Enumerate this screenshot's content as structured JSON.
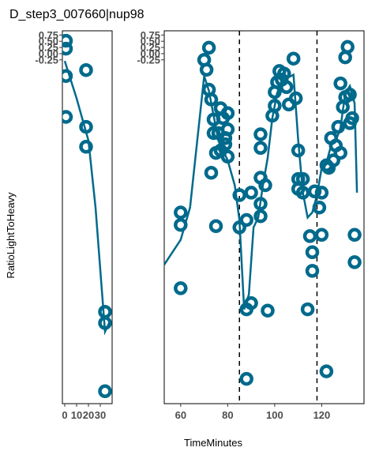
{
  "chart_data": {
    "type": "scatter",
    "title": "D_step3_007660|nup98",
    "xlabel": "TimeMinutes",
    "ylabel": "RatioLightToHeavy",
    "color": "#006a8c",
    "y_tick_labels": [
      "0.75",
      "0.50",
      "0.25",
      "0.00",
      "-0.25"
    ],
    "y_ticks": [
      0.75,
      0.5,
      0.25,
      0.0,
      -0.25
    ],
    "ylim": [
      -14.1,
      0.92
    ],
    "panels": [
      {
        "xlim": [
          -2,
          40
        ],
        "x_tick_labels": [
          "0",
          "10",
          "20",
          "30"
        ],
        "x_ticks": [
          0,
          10,
          20,
          30
        ],
        "vlines": [],
        "points": [
          {
            "x": 1,
            "y": 0.52
          },
          {
            "x": 1,
            "y": 0.2
          },
          {
            "x": 1,
            "y": -0.9
          },
          {
            "x": 1,
            "y": -2.55
          },
          {
            "x": 18,
            "y": -0.66
          },
          {
            "x": 18,
            "y": -2.95
          },
          {
            "x": 18,
            "y": -3.75
          },
          {
            "x": 34,
            "y": -10.4
          },
          {
            "x": 34,
            "y": -10.85
          },
          {
            "x": 34,
            "y": -13.6
          }
        ],
        "line": [
          {
            "x": 0,
            "y": -0.3
          },
          {
            "x": 10,
            "y": -1.8
          },
          {
            "x": 20,
            "y": -3.5
          },
          {
            "x": 26,
            "y": -6.2
          },
          {
            "x": 34,
            "y": -11.2
          },
          {
            "x": 38,
            "y": -10.8
          }
        ]
      },
      {
        "xlim": [
          53,
          138
        ],
        "x_tick_labels": [
          "60",
          "80",
          "100",
          "120"
        ],
        "x_ticks": [
          60,
          80,
          100,
          120
        ],
        "vlines": [
          85,
          118
        ],
        "points": [
          {
            "x": 60,
            "y": -6.4
          },
          {
            "x": 60,
            "y": -6.9
          },
          {
            "x": 60,
            "y": -9.45
          },
          {
            "x": 70,
            "y": -0.25
          },
          {
            "x": 71,
            "y": -0.65
          },
          {
            "x": 72,
            "y": 0.24
          },
          {
            "x": 72,
            "y": -1.45
          },
          {
            "x": 73,
            "y": -1.85
          },
          {
            "x": 73,
            "y": -4.8
          },
          {
            "x": 74,
            "y": -2.65
          },
          {
            "x": 74,
            "y": -3.2
          },
          {
            "x": 75,
            "y": -4.0
          },
          {
            "x": 75,
            "y": -6.95
          },
          {
            "x": 76,
            "y": -3.2
          },
          {
            "x": 77,
            "y": -3.9
          },
          {
            "x": 77,
            "y": -2.2
          },
          {
            "x": 78,
            "y": -2.6
          },
          {
            "x": 79,
            "y": -3.4
          },
          {
            "x": 79,
            "y": -3.65
          },
          {
            "x": 80,
            "y": -3.05
          },
          {
            "x": 80,
            "y": -2.4
          },
          {
            "x": 80,
            "y": -4.15
          },
          {
            "x": 85,
            "y": -5.7
          },
          {
            "x": 85,
            "y": -7.0
          },
          {
            "x": 88,
            "y": -6.7
          },
          {
            "x": 88,
            "y": -10.3
          },
          {
            "x": 88,
            "y": -13.1
          },
          {
            "x": 90,
            "y": -5.6
          },
          {
            "x": 90,
            "y": -10.05
          },
          {
            "x": 94,
            "y": -3.25
          },
          {
            "x": 94,
            "y": -3.8
          },
          {
            "x": 94,
            "y": -6.05
          },
          {
            "x": 94,
            "y": -6.55
          },
          {
            "x": 94,
            "y": -5.0
          },
          {
            "x": 96,
            "y": -5.3
          },
          {
            "x": 97,
            "y": -10.35
          },
          {
            "x": 99,
            "y": -2.5
          },
          {
            "x": 100,
            "y": -2.1
          },
          {
            "x": 100,
            "y": -1.55
          },
          {
            "x": 101,
            "y": -1.15
          },
          {
            "x": 102,
            "y": -0.7
          },
          {
            "x": 103,
            "y": -1.05
          },
          {
            "x": 104,
            "y": -0.8
          },
          {
            "x": 105,
            "y": -1.35
          },
          {
            "x": 106,
            "y": -2.05
          },
          {
            "x": 108,
            "y": -0.2
          },
          {
            "x": 109,
            "y": -1.8
          },
          {
            "x": 110,
            "y": -3.9
          },
          {
            "x": 110,
            "y": -5.05
          },
          {
            "x": 110,
            "y": -5.45
          },
          {
            "x": 112,
            "y": -5.05
          },
          {
            "x": 112,
            "y": -5.6
          },
          {
            "x": 114,
            "y": -10.3
          },
          {
            "x": 115,
            "y": -7.35
          },
          {
            "x": 116,
            "y": -8.0
          },
          {
            "x": 116,
            "y": -8.75
          },
          {
            "x": 117,
            "y": -5.55
          },
          {
            "x": 119,
            "y": -6.2
          },
          {
            "x": 120,
            "y": -5.6
          },
          {
            "x": 120,
            "y": -7.3
          },
          {
            "x": 122,
            "y": -12.8
          },
          {
            "x": 122,
            "y": -4.5
          },
          {
            "x": 123,
            "y": -4.6
          },
          {
            "x": 124,
            "y": -3.4
          },
          {
            "x": 125,
            "y": -4.3
          },
          {
            "x": 126,
            "y": -3.7
          },
          {
            "x": 127,
            "y": -2.95
          },
          {
            "x": 128,
            "y": -4.0
          },
          {
            "x": 128,
            "y": -1.2
          },
          {
            "x": 129,
            "y": -2.15
          },
          {
            "x": 130,
            "y": -1.75
          },
          {
            "x": 130,
            "y": -0.15
          },
          {
            "x": 131,
            "y": 0.27
          },
          {
            "x": 132,
            "y": -2.8
          },
          {
            "x": 132,
            "y": -1.65
          },
          {
            "x": 133,
            "y": -2.6
          },
          {
            "x": 134,
            "y": -7.3
          },
          {
            "x": 134,
            "y": -8.4
          }
        ],
        "line": [
          {
            "x": 53,
            "y": -8.5
          },
          {
            "x": 60,
            "y": -7.5
          },
          {
            "x": 64,
            "y": -6.2
          },
          {
            "x": 70,
            "y": -0.9
          },
          {
            "x": 72,
            "y": -1.5
          },
          {
            "x": 76,
            "y": -3.5
          },
          {
            "x": 80,
            "y": -4.3
          },
          {
            "x": 83,
            "y": -5.3
          },
          {
            "x": 85,
            "y": -6.7
          },
          {
            "x": 87,
            "y": -10.3
          },
          {
            "x": 89,
            "y": -9.7
          },
          {
            "x": 91,
            "y": -7.0
          },
          {
            "x": 93,
            "y": -6.6
          },
          {
            "x": 95,
            "y": -5.3
          },
          {
            "x": 97,
            "y": -4.2
          },
          {
            "x": 99,
            "y": -2.6
          },
          {
            "x": 101,
            "y": -1.6
          },
          {
            "x": 103,
            "y": -1.1
          },
          {
            "x": 105,
            "y": -1.0
          },
          {
            "x": 108,
            "y": -0.85
          },
          {
            "x": 110,
            "y": -3.5
          },
          {
            "x": 112,
            "y": -5.6
          },
          {
            "x": 114,
            "y": -6.6
          },
          {
            "x": 116,
            "y": -6.4
          },
          {
            "x": 118,
            "y": -5.7
          },
          {
            "x": 120,
            "y": -4.6
          },
          {
            "x": 122,
            "y": -4.4
          },
          {
            "x": 124,
            "y": -3.7
          },
          {
            "x": 126,
            "y": -3.5
          },
          {
            "x": 128,
            "y": -3.0
          },
          {
            "x": 130,
            "y": -1.6
          },
          {
            "x": 132,
            "y": -1.3
          },
          {
            "x": 134,
            "y": -2.0
          },
          {
            "x": 135,
            "y": -5.6
          }
        ]
      }
    ]
  }
}
